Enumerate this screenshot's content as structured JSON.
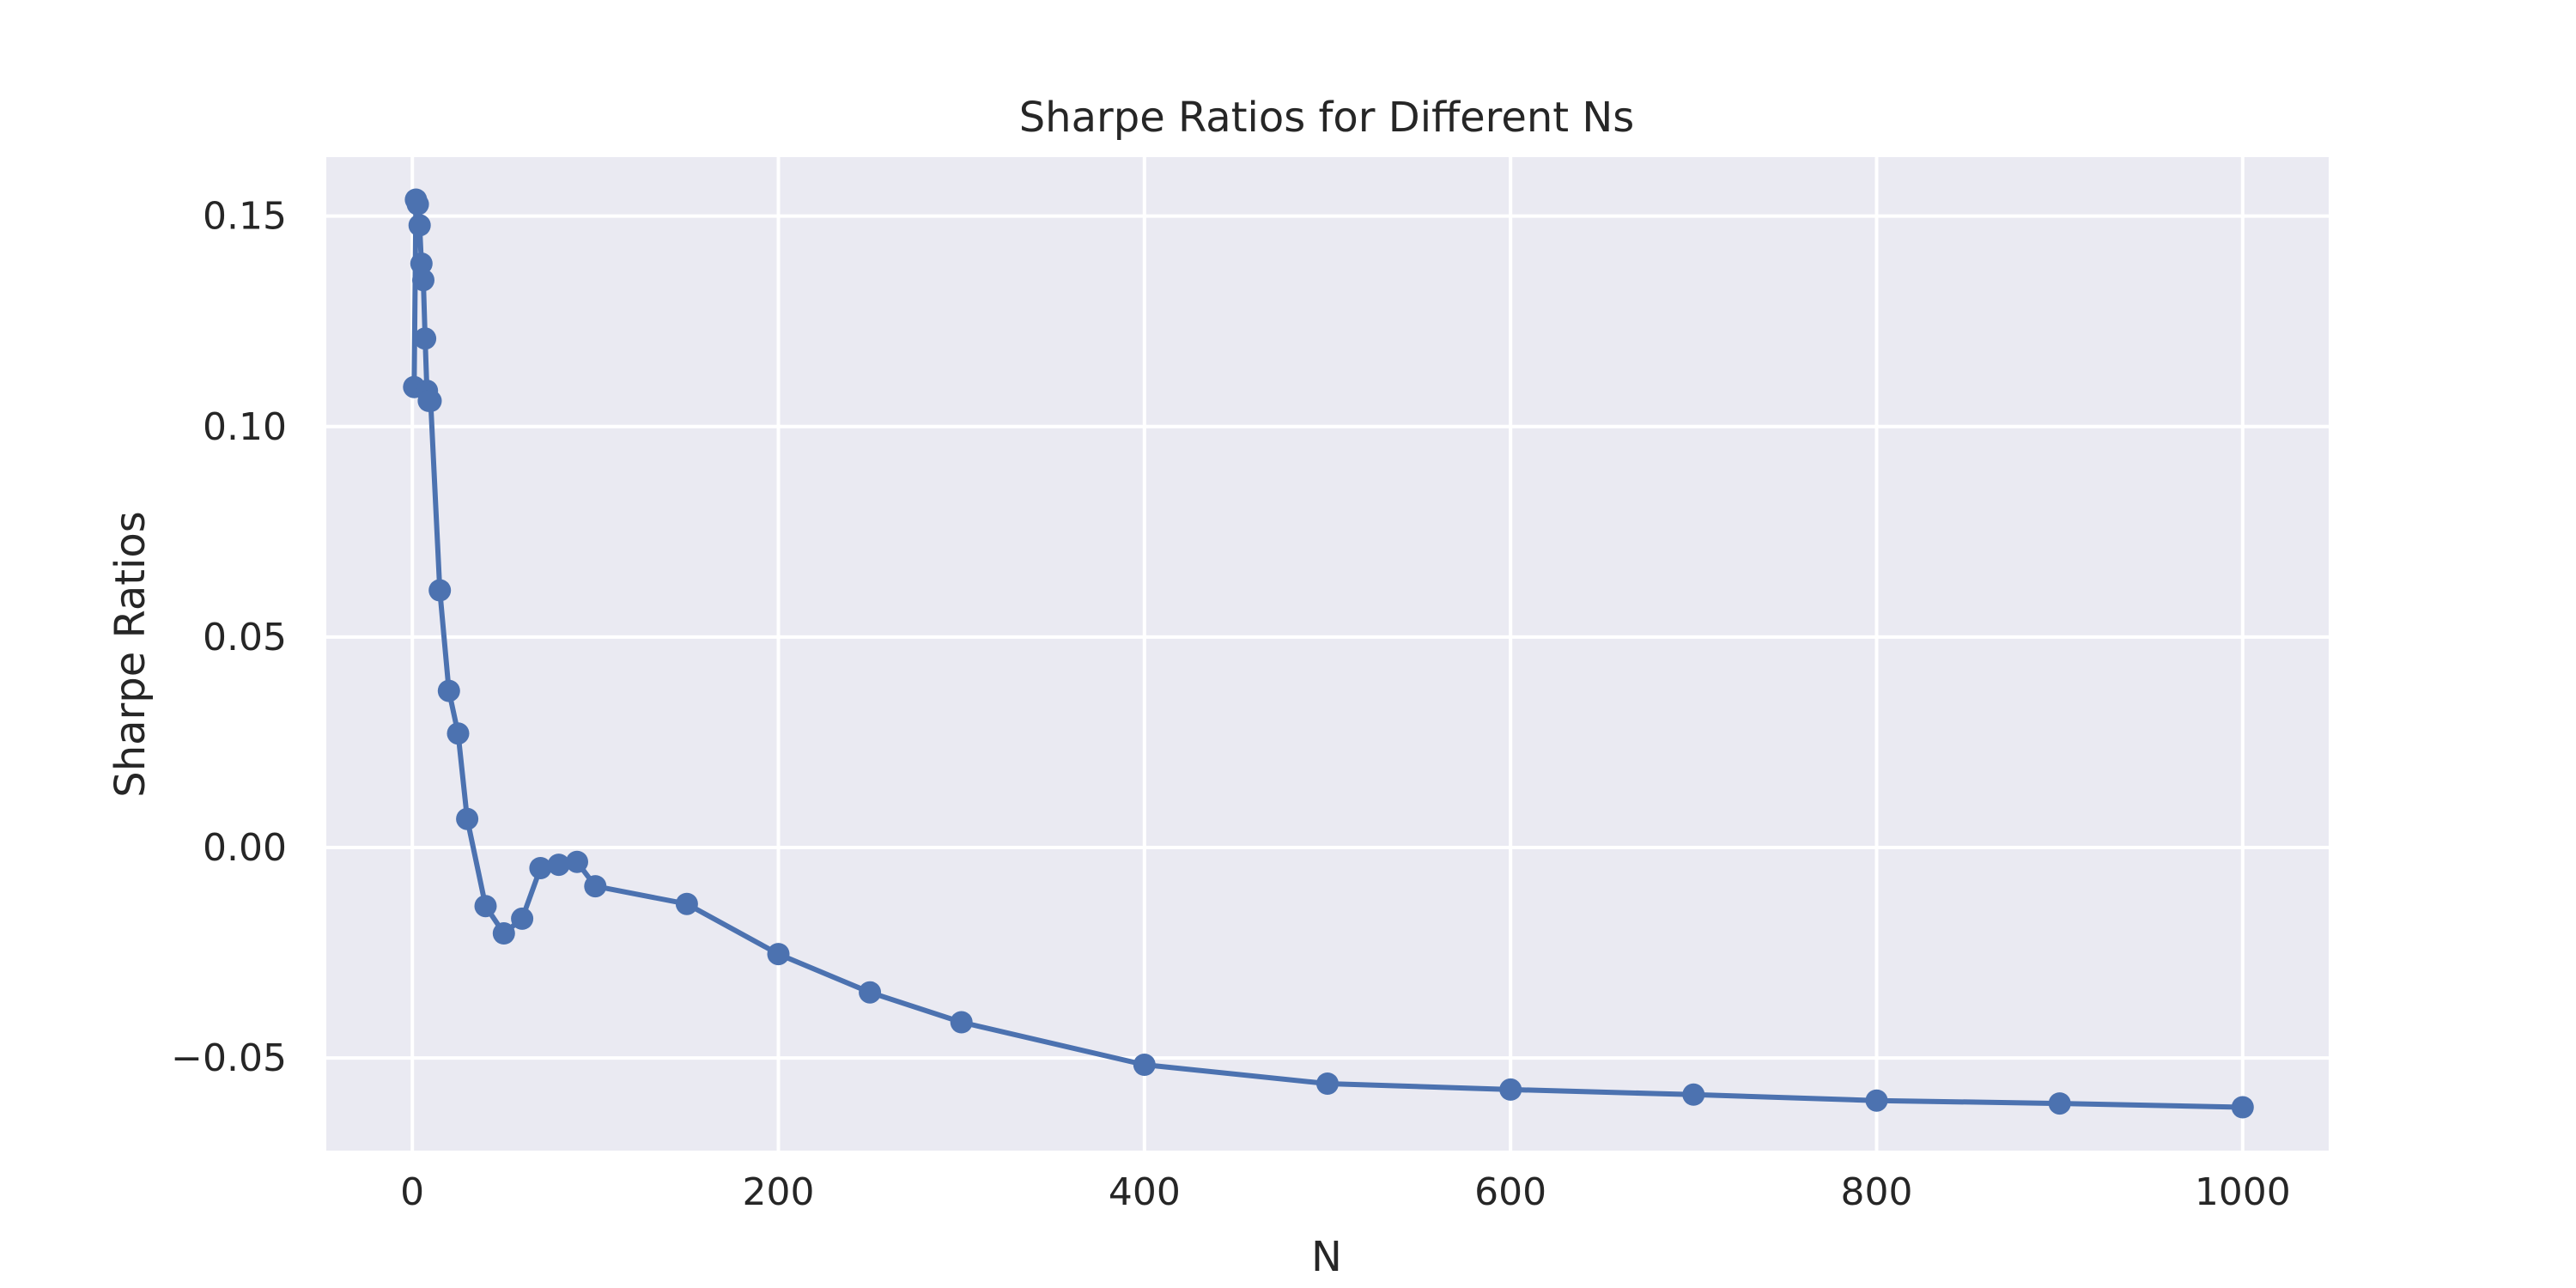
{
  "chart_data": {
    "type": "line",
    "title": "Sharpe Ratios for Different Ns",
    "xlabel": "N",
    "ylabel": "Sharpe Ratios",
    "xlim": [
      -47,
      1047
    ],
    "ylim": [
      -0.072,
      0.164
    ],
    "xticks": [
      0,
      200,
      400,
      600,
      800,
      1000
    ],
    "xtick_labels": [
      "0",
      "200",
      "400",
      "600",
      "800",
      "1000"
    ],
    "yticks": [
      -0.05,
      0.0,
      0.05,
      0.1,
      0.15
    ],
    "ytick_labels": [
      "−0.05",
      "0.00",
      "0.05",
      "0.10",
      "0.15"
    ],
    "grid": true,
    "marker": "circle",
    "color": "#4c72b0",
    "background": "#eaeaf2",
    "series": [
      {
        "x": [
          1,
          2,
          3,
          4,
          5,
          6,
          7,
          8,
          9,
          10,
          15,
          20,
          25,
          30,
          40,
          50,
          60,
          70,
          80,
          90,
          100,
          150,
          200,
          250,
          300,
          400,
          500,
          600,
          700,
          800,
          900,
          1000
        ],
        "y": [
          0.1094,
          0.1539,
          0.1528,
          0.1478,
          0.1387,
          0.1348,
          0.1209,
          0.1085,
          0.1061,
          0.1061,
          0.0611,
          0.0372,
          0.0271,
          0.0068,
          -0.0139,
          -0.0204,
          -0.0169,
          -0.0049,
          -0.0041,
          -0.0034,
          -0.0092,
          -0.0134,
          -0.0253,
          -0.0344,
          -0.0415,
          -0.0516,
          -0.0561,
          -0.0575,
          -0.0587,
          -0.0601,
          -0.0608,
          -0.0617
        ]
      }
    ]
  }
}
